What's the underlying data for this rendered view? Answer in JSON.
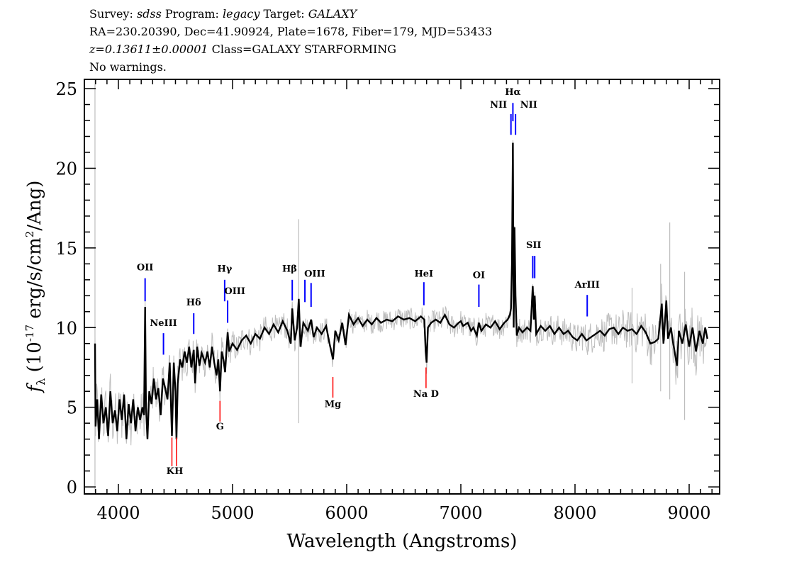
{
  "header": {
    "line1": {
      "survey_label": "Survey: ",
      "survey": "sdss",
      "program_label": " Program: ",
      "program": "legacy",
      "target_label": " Target: ",
      "target": "GALAXY"
    },
    "line2": "RA=230.20390, Dec=41.90924, Plate=1678, Fiber=179, MJD=53433",
    "line3": {
      "redshift": "z=0.13611±0.00001",
      "class": " Class=GALAXY STARFORMING"
    },
    "line4": "No warnings."
  },
  "chart_data": {
    "type": "line",
    "xlabel": "Wavelength (Angstroms)",
    "ylabel_symbol": "f",
    "ylabel_sub": "λ",
    "ylabel_units_a": " (10",
    "ylabel_units_exp": "-17",
    "ylabel_units_b": " erg/s/cm",
    "ylabel_units_exp2": "2",
    "ylabel_units_c": "/Ang)",
    "xlim": [
      3702,
      9267
    ],
    "ylim": [
      -0.44,
      25.58
    ],
    "x_ticks": [
      4000,
      5000,
      6000,
      7000,
      8000,
      9000
    ],
    "x_tick_labels": [
      "4000",
      "5000",
      "6000",
      "7000",
      "8000",
      "9000"
    ],
    "x_minor_step": 100,
    "y_ticks": [
      0,
      5,
      10,
      15,
      20,
      25
    ],
    "y_tick_labels": [
      "0",
      "5",
      "10",
      "15",
      "20",
      "25"
    ],
    "y_minor_step": 1,
    "grid": false,
    "colors": {
      "flux": "#000000",
      "error": "#bdbdbd",
      "emission": "#0000ff",
      "absorption": "#ff0000"
    },
    "spectrum": [
      [
        3795,
        9.0
      ],
      [
        3800,
        3.8
      ],
      [
        3815,
        5.5
      ],
      [
        3830,
        3.0
      ],
      [
        3850,
        5.8
      ],
      [
        3870,
        4.0
      ],
      [
        3890,
        5.0
      ],
      [
        3910,
        3.2
      ],
      [
        3930,
        6.0
      ],
      [
        3950,
        4.0
      ],
      [
        3970,
        4.8
      ],
      [
        3990,
        3.5
      ],
      [
        4010,
        5.5
      ],
      [
        4030,
        4.2
      ],
      [
        4050,
        5.8
      ],
      [
        4070,
        3.0
      ],
      [
        4090,
        5.2
      ],
      [
        4110,
        4.0
      ],
      [
        4130,
        5.5
      ],
      [
        4150,
        3.5
      ],
      [
        4170,
        5.0
      ],
      [
        4190,
        4.2
      ],
      [
        4210,
        5.0
      ],
      [
        4225,
        4.5
      ],
      [
        4234,
        11.3
      ],
      [
        4242,
        5.0
      ],
      [
        4255,
        3.0
      ],
      [
        4270,
        6.0
      ],
      [
        4290,
        5.2
      ],
      [
        4310,
        6.8
      ],
      [
        4330,
        5.5
      ],
      [
        4350,
        6.2
      ],
      [
        4370,
        4.5
      ],
      [
        4390,
        6.8
      ],
      [
        4410,
        6.2
      ],
      [
        4430,
        5.5
      ],
      [
        4450,
        7.8
      ],
      [
        4469,
        3.2
      ],
      [
        4485,
        7.8
      ],
      [
        4500,
        6.0
      ],
      [
        4509,
        3.0
      ],
      [
        4520,
        6.5
      ],
      [
        4540,
        8.0
      ],
      [
        4560,
        7.5
      ],
      [
        4580,
        8.5
      ],
      [
        4600,
        7.8
      ],
      [
        4620,
        8.8
      ],
      [
        4640,
        7.5
      ],
      [
        4660,
        8.6
      ],
      [
        4672,
        6.5
      ],
      [
        4690,
        8.8
      ],
      [
        4710,
        7.6
      ],
      [
        4730,
        8.4
      ],
      [
        4760,
        7.8
      ],
      [
        4780,
        8.5
      ],
      [
        4800,
        7.5
      ],
      [
        4820,
        8.8
      ],
      [
        4840,
        7.8
      ],
      [
        4860,
        7.0
      ],
      [
        4875,
        8.0
      ],
      [
        4890,
        6.0
      ],
      [
        4905,
        8.5
      ],
      [
        4920,
        8.0
      ],
      [
        4935,
        7.2
      ],
      [
        4957,
        9.7
      ],
      [
        4970,
        8.5
      ],
      [
        5000,
        9.0
      ],
      [
        5040,
        8.6
      ],
      [
        5080,
        9.2
      ],
      [
        5120,
        9.5
      ],
      [
        5160,
        9.0
      ],
      [
        5200,
        9.6
      ],
      [
        5240,
        9.3
      ],
      [
        5280,
        10.0
      ],
      [
        5320,
        9.6
      ],
      [
        5360,
        10.2
      ],
      [
        5400,
        9.7
      ],
      [
        5440,
        10.4
      ],
      [
        5480,
        9.8
      ],
      [
        5510,
        9.0
      ],
      [
        5523,
        11.2
      ],
      [
        5545,
        9.2
      ],
      [
        5565,
        10.0
      ],
      [
        5580,
        11.8
      ],
      [
        5595,
        8.8
      ],
      [
        5620,
        10.3
      ],
      [
        5660,
        9.8
      ],
      [
        5688,
        10.5
      ],
      [
        5710,
        9.4
      ],
      [
        5740,
        10.0
      ],
      [
        5780,
        9.6
      ],
      [
        5820,
        10.1
      ],
      [
        5850,
        9.0
      ],
      [
        5880,
        8.0
      ],
      [
        5900,
        9.8
      ],
      [
        5930,
        9.2
      ],
      [
        5960,
        10.3
      ],
      [
        5990,
        8.9
      ],
      [
        6020,
        10.8
      ],
      [
        6060,
        10.2
      ],
      [
        6100,
        10.6
      ],
      [
        6140,
        10.1
      ],
      [
        6180,
        10.5
      ],
      [
        6220,
        10.2
      ],
      [
        6260,
        10.6
      ],
      [
        6300,
        10.3
      ],
      [
        6350,
        10.5
      ],
      [
        6400,
        10.4
      ],
      [
        6450,
        10.7
      ],
      [
        6500,
        10.5
      ],
      [
        6550,
        10.6
      ],
      [
        6600,
        10.4
      ],
      [
        6650,
        10.7
      ],
      [
        6680,
        10.5
      ],
      [
        6692,
        8.5
      ],
      [
        6700,
        7.8
      ],
      [
        6712,
        10.0
      ],
      [
        6740,
        10.3
      ],
      [
        6780,
        10.5
      ],
      [
        6820,
        10.3
      ],
      [
        6860,
        10.8
      ],
      [
        6900,
        10.2
      ],
      [
        6940,
        10.0
      ],
      [
        6980,
        10.3
      ],
      [
        7000,
        10.4
      ],
      [
        7020,
        10.1
      ],
      [
        7060,
        10.3
      ],
      [
        7090,
        9.8
      ],
      [
        7110,
        10.0
      ],
      [
        7140,
        9.5
      ],
      [
        7158,
        10.3
      ],
      [
        7180,
        9.8
      ],
      [
        7220,
        10.2
      ],
      [
        7260,
        10.0
      ],
      [
        7300,
        10.4
      ],
      [
        7340,
        9.9
      ],
      [
        7380,
        10.3
      ],
      [
        7410,
        10.5
      ],
      [
        7430,
        10.8
      ],
      [
        7439,
        11.2
      ],
      [
        7448,
        14.0
      ],
      [
        7456,
        21.6
      ],
      [
        7463,
        10.0
      ],
      [
        7470,
        16.3
      ],
      [
        7479,
        12.0
      ],
      [
        7490,
        9.5
      ],
      [
        7510,
        10.0
      ],
      [
        7540,
        9.7
      ],
      [
        7580,
        10.0
      ],
      [
        7610,
        9.8
      ],
      [
        7630,
        12.6
      ],
      [
        7640,
        10.5
      ],
      [
        7647,
        12.0
      ],
      [
        7660,
        9.6
      ],
      [
        7700,
        10.1
      ],
      [
        7740,
        9.8
      ],
      [
        7780,
        10.1
      ],
      [
        7820,
        9.6
      ],
      [
        7860,
        10.0
      ],
      [
        7900,
        9.6
      ],
      [
        7940,
        9.8
      ],
      [
        7980,
        9.4
      ],
      [
        8020,
        9.2
      ],
      [
        8060,
        9.6
      ],
      [
        8100,
        9.2
      ],
      [
        8140,
        9.4
      ],
      [
        8180,
        9.6
      ],
      [
        8220,
        9.8
      ],
      [
        8260,
        9.5
      ],
      [
        8300,
        9.9
      ],
      [
        8340,
        10.0
      ],
      [
        8380,
        9.6
      ],
      [
        8420,
        10.0
      ],
      [
        8460,
        9.8
      ],
      [
        8500,
        9.9
      ],
      [
        8540,
        9.6
      ],
      [
        8580,
        10.1
      ],
      [
        8620,
        9.7
      ],
      [
        8660,
        9.0
      ],
      [
        8700,
        9.1
      ],
      [
        8730,
        9.3
      ],
      [
        8760,
        11.5
      ],
      [
        8775,
        9.0
      ],
      [
        8800,
        11.7
      ],
      [
        8815,
        9.3
      ],
      [
        8840,
        10.0
      ],
      [
        8860,
        9.0
      ],
      [
        8894,
        7.6
      ],
      [
        8910,
        9.8
      ],
      [
        8940,
        9.0
      ],
      [
        8970,
        10.2
      ],
      [
        9000,
        8.8
      ],
      [
        9030,
        10.0
      ],
      [
        9060,
        8.5
      ],
      [
        9090,
        9.8
      ],
      [
        9120,
        9.0
      ],
      [
        9140,
        10.0
      ],
      [
        9160,
        9.3
      ]
    ],
    "error_band": [
      [
        3795,
        1.2
      ],
      [
        4300,
        1.0
      ],
      [
        5000,
        0.7
      ],
      [
        6000,
        0.5
      ],
      [
        7500,
        0.6
      ],
      [
        8400,
        0.9
      ],
      [
        9160,
        1.4
      ]
    ],
    "sky_residuals": [
      [
        3795,
        -0.4,
        25.6
      ],
      [
        5580,
        4.0,
        16.8
      ],
      [
        8500,
        6.5,
        12.5
      ],
      [
        8750,
        6.0,
        14.0
      ],
      [
        8830,
        5.5,
        16.6
      ],
      [
        8960,
        4.2,
        13.5
      ]
    ],
    "lines": [
      {
        "label": "OII",
        "wavelength": 4234,
        "type": "emission",
        "range": [
          11.65,
          13.1
        ],
        "label_at": [
          4234,
          13.6
        ]
      },
      {
        "label": "NeIII",
        "wavelength": 4395,
        "type": "emission",
        "range": [
          8.3,
          9.65
        ],
        "label_at": [
          4395,
          10.1
        ]
      },
      {
        "label": "Hδ",
        "wavelength": 4660,
        "type": "emission",
        "range": [
          9.6,
          10.9
        ],
        "label_at": [
          4660,
          11.4
        ]
      },
      {
        "label": "Hγ",
        "wavelength": 4931,
        "type": "emission",
        "range": [
          11.65,
          13.0
        ],
        "label_at": [
          4931,
          13.5
        ]
      },
      {
        "label": "OIII",
        "wavelength": 4957,
        "type": "emission",
        "range": [
          10.3,
          11.7
        ],
        "label_at": [
          5020,
          12.1
        ]
      },
      {
        "label": "Hβ",
        "wavelength": 5523,
        "type": "emission",
        "range": [
          11.7,
          13.0
        ],
        "label_at": [
          5500,
          13.5
        ]
      },
      {
        "label": "",
        "wavelength": 5634,
        "type": "emission",
        "range": [
          11.6,
          13.0
        ],
        "label_at": [
          5634,
          13.2
        ]
      },
      {
        "label": "OIII",
        "wavelength": 5688,
        "type": "emission",
        "range": [
          11.3,
          12.8
        ],
        "label_at": [
          5720,
          13.2
        ]
      },
      {
        "label": "HeI",
        "wavelength": 6676,
        "type": "emission",
        "range": [
          11.4,
          12.85
        ],
        "label_at": [
          6676,
          13.2
        ]
      },
      {
        "label": "OI",
        "wavelength": 7158,
        "type": "emission",
        "range": [
          11.3,
          12.7
        ],
        "label_at": [
          7158,
          13.1
        ]
      },
      {
        "label": "NII",
        "wavelength": 7439,
        "type": "emission",
        "range": [
          22.1,
          23.4
        ],
        "label_at": [
          7330,
          23.8
        ]
      },
      {
        "label": "Hα",
        "wavelength": 7456,
        "type": "emission",
        "range": [
          22.95,
          24.1
        ],
        "label_at": [
          7456,
          24.6
        ]
      },
      {
        "label": "NII",
        "wavelength": 7479,
        "type": "emission",
        "range": [
          22.1,
          23.4
        ],
        "label_at": [
          7595,
          23.8
        ]
      },
      {
        "label": "SII",
        "wavelength": 7630,
        "type": "emission",
        "range": [
          13.1,
          14.5
        ],
        "label_at": [
          7638,
          15.0
        ]
      },
      {
        "label": "",
        "wavelength": 7647,
        "type": "emission",
        "range": [
          13.1,
          14.5
        ],
        "label_at": [
          7647,
          15.0
        ]
      },
      {
        "label": "ArIII",
        "wavelength": 8107,
        "type": "emission",
        "range": [
          10.7,
          12.05
        ],
        "label_at": [
          8107,
          12.5
        ]
      },
      {
        "label": "K",
        "wavelength": 4469,
        "type": "absorption",
        "range": [
          1.3,
          3.1
        ],
        "label_at": [
          4455,
          0.8
        ]
      },
      {
        "label": "H",
        "wavelength": 4509,
        "type": "absorption",
        "range": [
          1.3,
          3.1
        ],
        "label_at": [
          4530,
          0.8
        ]
      },
      {
        "label": "G",
        "wavelength": 4890,
        "type": "absorption",
        "range": [
          4.1,
          5.4
        ],
        "label_at": [
          4890,
          3.6
        ]
      },
      {
        "label": "Mg",
        "wavelength": 5879,
        "type": "absorption",
        "range": [
          5.6,
          6.9
        ],
        "label_at": [
          5879,
          5.0
        ]
      },
      {
        "label": "Na  D",
        "wavelength": 6695,
        "type": "absorption",
        "range": [
          6.2,
          7.5
        ],
        "label_at": [
          6695,
          5.65
        ]
      }
    ]
  }
}
